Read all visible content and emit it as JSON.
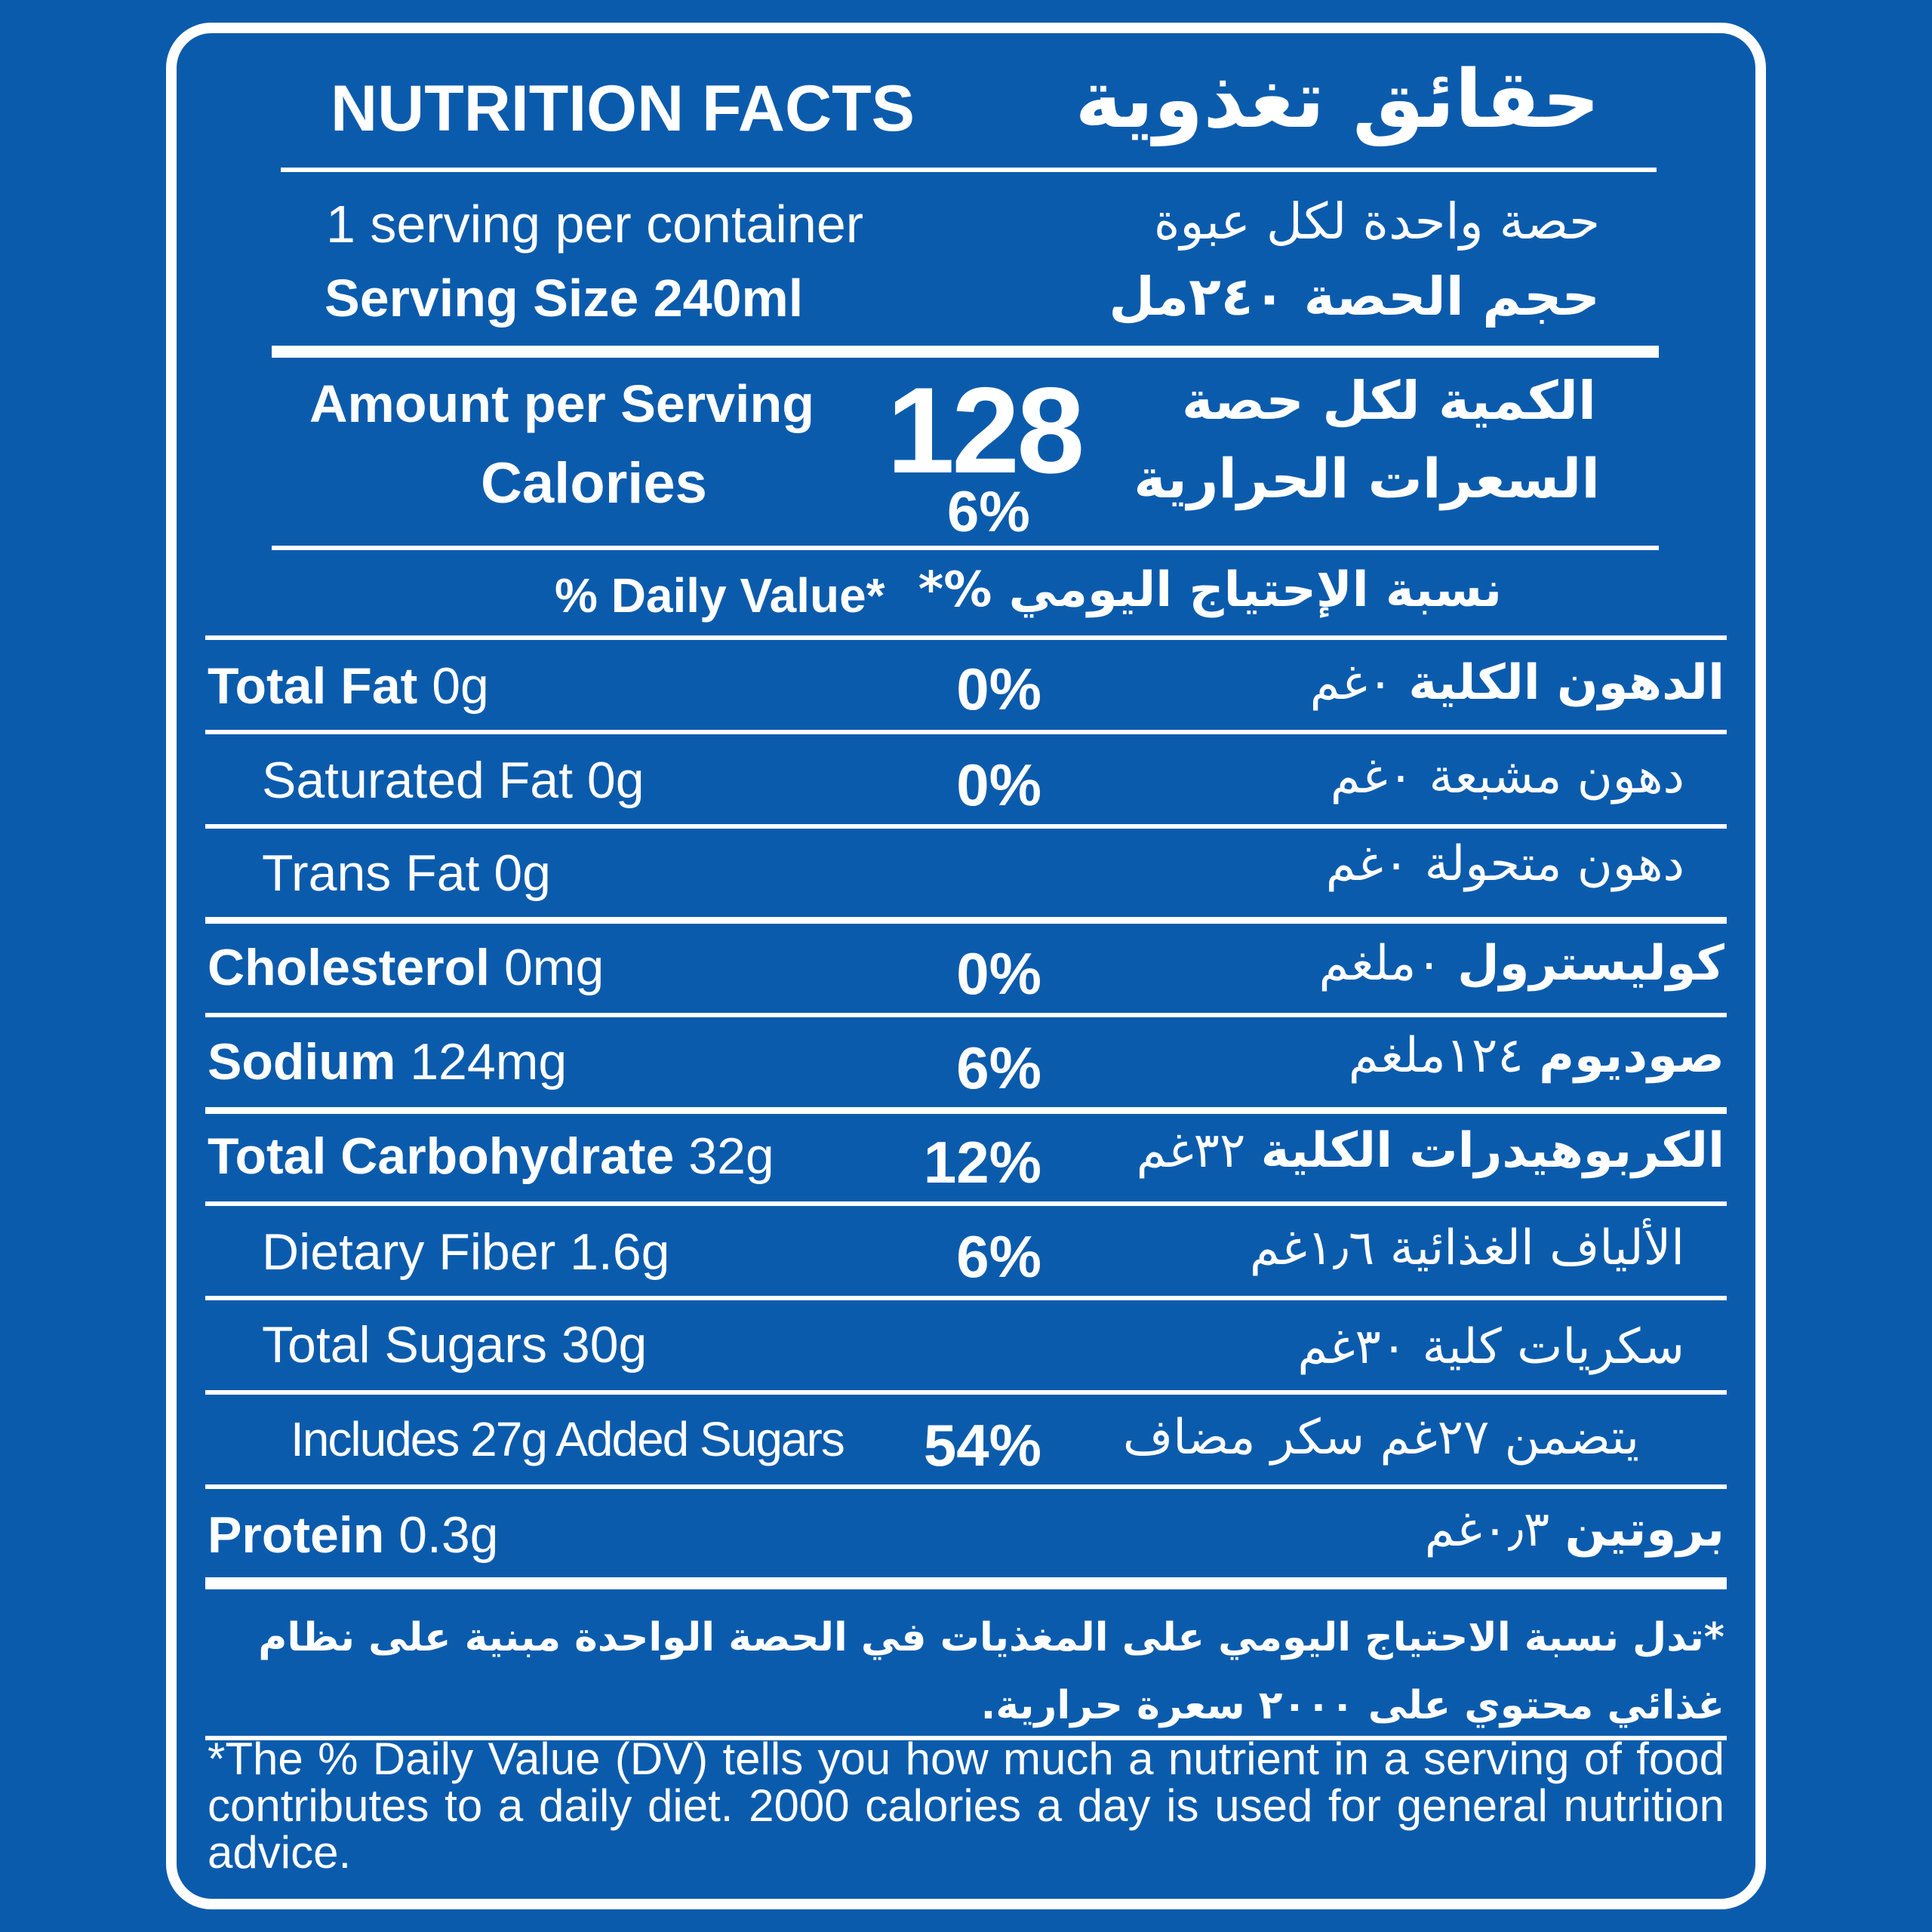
{
  "header": {
    "title_en": "NUTRITION FACTS",
    "title_ar": "حقائق تغذوية"
  },
  "serving": {
    "per_container_en": "1 serving per container",
    "per_container_ar": "حصة واحدة لكل عبوة",
    "size_en": "Serving Size 240ml",
    "size_ar": "حجم الحصة ٢٤٠مل"
  },
  "calories": {
    "amount_label_en": "Amount per Serving",
    "calories_label_en": "Calories",
    "amount_label_ar": "الكمية لكل حصة",
    "calories_label_ar": "السعرات الحرارية",
    "value": "128",
    "percent": "6%"
  },
  "daily_value_header": {
    "en": "% Daily Value*",
    "ar": "نسبة الإحتياج اليومي %*"
  },
  "nutrients": [
    {
      "name_en": "Total Fat",
      "amount_en": "0g",
      "percent": "0%",
      "name_ar": "الدهون الكلية",
      "amount_ar": "٠غم"
    },
    {
      "name_en": "Saturated Fat 0g",
      "amount_en": "",
      "percent": "0%",
      "name_ar": "",
      "amount_ar": "دهون مشبعة ٠غم"
    },
    {
      "name_en": "Trans Fat 0g",
      "amount_en": "",
      "percent": "",
      "name_ar": "",
      "amount_ar": "دهون متحولة ٠غم"
    },
    {
      "name_en": "Cholesterol",
      "amount_en": "0mg",
      "percent": "0%",
      "name_ar": "كوليسترول",
      "amount_ar": "٠ملغم"
    },
    {
      "name_en": "Sodium",
      "amount_en": "124mg",
      "percent": "6%",
      "name_ar": "صوديوم",
      "amount_ar": "١٢٤ملغم"
    },
    {
      "name_en": "Total Carbohydrate",
      "amount_en": "32g",
      "percent": "12%",
      "name_ar": "الكربوهيدرات الكلية",
      "amount_ar": "٣٢غم"
    },
    {
      "name_en": "Dietary Fiber 1.6g",
      "amount_en": "",
      "percent": "6%",
      "name_ar": "",
      "amount_ar": "الألياف الغذائية ١٫٦غم"
    },
    {
      "name_en": "Total Sugars 30g",
      "amount_en": "",
      "percent": "",
      "name_ar": "",
      "amount_ar": "سكريات كلية ٣٠غم"
    },
    {
      "name_en": "Includes 27g Added Sugars",
      "amount_en": "",
      "percent": "54%",
      "name_ar": "",
      "amount_ar": "يتضمن ٢٧غم سكر مضاف"
    },
    {
      "name_en": "Protein",
      "amount_en": "0.3g",
      "percent": "",
      "name_ar": "بروتين",
      "amount_ar": "٠٫٣غم"
    }
  ],
  "footnote": {
    "ar": "*تدل نسبة الاحتياج اليومي على المغذيات في الحصة الواحدة مبنية على نظام غذائي محتوي على ٢٠٠٠ سعرة حرارية.",
    "en": "*The % Daily Value (DV) tells you how much a nutrient in a serving  of food contributes to a daily diet. 2000 calories a day is used for general nutrition advice."
  }
}
